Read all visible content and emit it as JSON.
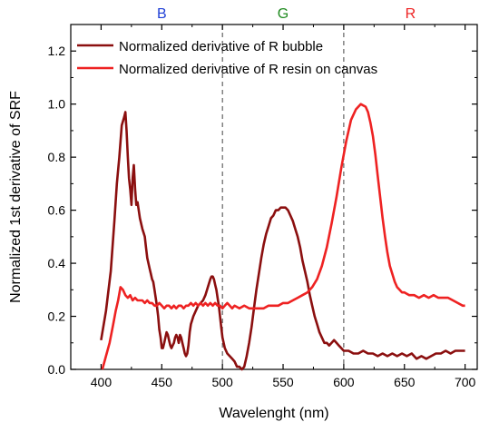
{
  "chart_data": {
    "type": "line",
    "xlabel": "Wavelenght (nm)",
    "ylabel": "Normalized 1st derivative of SRF",
    "xlim": [
      375,
      710
    ],
    "ylim": [
      0,
      1.3
    ],
    "x_ticks": [
      400,
      450,
      500,
      550,
      600,
      650,
      700
    ],
    "y_ticks": [
      0.0,
      0.2,
      0.4,
      0.6,
      0.8,
      1.0,
      1.2
    ],
    "y_tick_labels": [
      "0.0",
      "0.2",
      "0.4",
      "0.6",
      "0.8",
      "1.0",
      "1.2"
    ],
    "grid": false,
    "legend_position": "top-left",
    "band_lines": [
      500,
      600
    ],
    "band_labels": [
      {
        "label": "B",
        "color": "#1f3fd6",
        "x": 450
      },
      {
        "label": "G",
        "color": "#1f8a1f",
        "x": 550
      },
      {
        "label": "R",
        "color": "#ee2222",
        "x": 655
      }
    ],
    "series": [
      {
        "name": "Normalized derivative of R bubble",
        "color": "#8b0f0f",
        "points": [
          [
            400,
            0.11
          ],
          [
            404,
            0.22
          ],
          [
            408,
            0.37
          ],
          [
            411,
            0.56
          ],
          [
            413,
            0.7
          ],
          [
            415,
            0.8
          ],
          [
            417,
            0.92
          ],
          [
            419,
            0.95
          ],
          [
            420,
            0.97
          ],
          [
            421,
            0.9
          ],
          [
            422,
            0.8
          ],
          [
            423,
            0.72
          ],
          [
            424,
            0.68
          ],
          [
            425,
            0.62
          ],
          [
            426,
            0.72
          ],
          [
            427,
            0.77
          ],
          [
            428,
            0.68
          ],
          [
            429,
            0.62
          ],
          [
            430,
            0.63
          ],
          [
            432,
            0.57
          ],
          [
            434,
            0.53
          ],
          [
            436,
            0.5
          ],
          [
            437,
            0.46
          ],
          [
            438,
            0.42
          ],
          [
            440,
            0.38
          ],
          [
            441,
            0.36
          ],
          [
            442,
            0.34
          ],
          [
            443,
            0.33
          ],
          [
            444,
            0.3
          ],
          [
            446,
            0.24
          ],
          [
            447,
            0.2
          ],
          [
            448,
            0.15
          ],
          [
            449,
            0.12
          ],
          [
            450,
            0.08
          ],
          [
            451,
            0.08
          ],
          [
            452,
            0.1
          ],
          [
            453,
            0.12
          ],
          [
            454,
            0.14
          ],
          [
            455,
            0.13
          ],
          [
            456,
            0.11
          ],
          [
            457,
            0.09
          ],
          [
            458,
            0.08
          ],
          [
            459,
            0.09
          ],
          [
            460,
            0.1
          ],
          [
            461,
            0.12
          ],
          [
            462,
            0.13
          ],
          [
            463,
            0.12
          ],
          [
            464,
            0.1
          ],
          [
            465,
            0.13
          ],
          [
            466,
            0.12
          ],
          [
            467,
            0.1
          ],
          [
            468,
            0.08
          ],
          [
            469,
            0.06
          ],
          [
            470,
            0.05
          ],
          [
            471,
            0.06
          ],
          [
            472,
            0.09
          ],
          [
            473,
            0.14
          ],
          [
            474,
            0.17
          ],
          [
            476,
            0.2
          ],
          [
            478,
            0.22
          ],
          [
            480,
            0.24
          ],
          [
            482,
            0.25
          ],
          [
            484,
            0.26
          ],
          [
            486,
            0.28
          ],
          [
            488,
            0.31
          ],
          [
            490,
            0.34
          ],
          [
            491,
            0.35
          ],
          [
            492,
            0.35
          ],
          [
            493,
            0.34
          ],
          [
            494,
            0.32
          ],
          [
            495,
            0.3
          ],
          [
            496,
            0.27
          ],
          [
            497,
            0.24
          ],
          [
            498,
            0.2
          ],
          [
            499,
            0.16
          ],
          [
            500,
            0.12
          ],
          [
            502,
            0.08
          ],
          [
            504,
            0.06
          ],
          [
            506,
            0.05
          ],
          [
            508,
            0.04
          ],
          [
            510,
            0.03
          ],
          [
            512,
            0.01
          ],
          [
            514,
            0.01
          ],
          [
            516,
            0.0
          ],
          [
            518,
            0.01
          ],
          [
            520,
            0.05
          ],
          [
            522,
            0.1
          ],
          [
            524,
            0.16
          ],
          [
            526,
            0.23
          ],
          [
            528,
            0.3
          ],
          [
            530,
            0.36
          ],
          [
            532,
            0.42
          ],
          [
            534,
            0.47
          ],
          [
            536,
            0.51
          ],
          [
            538,
            0.54
          ],
          [
            540,
            0.57
          ],
          [
            542,
            0.58
          ],
          [
            544,
            0.6
          ],
          [
            546,
            0.6
          ],
          [
            548,
            0.61
          ],
          [
            550,
            0.61
          ],
          [
            552,
            0.61
          ],
          [
            554,
            0.6
          ],
          [
            556,
            0.58
          ],
          [
            558,
            0.56
          ],
          [
            560,
            0.53
          ],
          [
            562,
            0.5
          ],
          [
            564,
            0.46
          ],
          [
            566,
            0.41
          ],
          [
            568,
            0.37
          ],
          [
            570,
            0.33
          ],
          [
            572,
            0.28
          ],
          [
            574,
            0.24
          ],
          [
            576,
            0.2
          ],
          [
            578,
            0.17
          ],
          [
            580,
            0.14
          ],
          [
            582,
            0.12
          ],
          [
            584,
            0.1
          ],
          [
            586,
            0.1
          ],
          [
            588,
            0.09
          ],
          [
            590,
            0.1
          ],
          [
            592,
            0.11
          ],
          [
            594,
            0.1
          ],
          [
            596,
            0.09
          ],
          [
            598,
            0.08
          ],
          [
            600,
            0.07
          ],
          [
            604,
            0.07
          ],
          [
            608,
            0.06
          ],
          [
            612,
            0.06
          ],
          [
            616,
            0.07
          ],
          [
            620,
            0.06
          ],
          [
            624,
            0.06
          ],
          [
            628,
            0.05
          ],
          [
            632,
            0.06
          ],
          [
            636,
            0.05
          ],
          [
            640,
            0.06
          ],
          [
            644,
            0.05
          ],
          [
            648,
            0.06
          ],
          [
            652,
            0.05
          ],
          [
            656,
            0.06
          ],
          [
            660,
            0.04
          ],
          [
            664,
            0.05
          ],
          [
            668,
            0.04
          ],
          [
            672,
            0.05
          ],
          [
            676,
            0.06
          ],
          [
            680,
            0.06
          ],
          [
            684,
            0.07
          ],
          [
            688,
            0.06
          ],
          [
            692,
            0.07
          ],
          [
            696,
            0.07
          ],
          [
            700,
            0.07
          ]
        ]
      },
      {
        "name": "Normalized derivative of R resin on canvas",
        "color": "#ee2222",
        "points": [
          [
            401,
            0.0
          ],
          [
            404,
            0.05
          ],
          [
            407,
            0.1
          ],
          [
            410,
            0.17
          ],
          [
            412,
            0.22
          ],
          [
            414,
            0.26
          ],
          [
            416,
            0.31
          ],
          [
            418,
            0.3
          ],
          [
            420,
            0.28
          ],
          [
            422,
            0.27
          ],
          [
            424,
            0.28
          ],
          [
            426,
            0.26
          ],
          [
            428,
            0.27
          ],
          [
            430,
            0.26
          ],
          [
            432,
            0.26
          ],
          [
            434,
            0.26
          ],
          [
            436,
            0.25
          ],
          [
            438,
            0.26
          ],
          [
            440,
            0.25
          ],
          [
            442,
            0.25
          ],
          [
            444,
            0.24
          ],
          [
            446,
            0.24
          ],
          [
            448,
            0.25
          ],
          [
            450,
            0.24
          ],
          [
            452,
            0.23
          ],
          [
            454,
            0.24
          ],
          [
            456,
            0.24
          ],
          [
            458,
            0.23
          ],
          [
            460,
            0.24
          ],
          [
            462,
            0.23
          ],
          [
            464,
            0.24
          ],
          [
            466,
            0.24
          ],
          [
            468,
            0.23
          ],
          [
            470,
            0.24
          ],
          [
            472,
            0.24
          ],
          [
            474,
            0.25
          ],
          [
            476,
            0.24
          ],
          [
            478,
            0.25
          ],
          [
            480,
            0.24
          ],
          [
            482,
            0.25
          ],
          [
            484,
            0.24
          ],
          [
            486,
            0.25
          ],
          [
            488,
            0.24
          ],
          [
            490,
            0.25
          ],
          [
            492,
            0.24
          ],
          [
            494,
            0.25
          ],
          [
            496,
            0.24
          ],
          [
            498,
            0.24
          ],
          [
            500,
            0.23
          ],
          [
            502,
            0.24
          ],
          [
            504,
            0.25
          ],
          [
            506,
            0.24
          ],
          [
            508,
            0.23
          ],
          [
            510,
            0.24
          ],
          [
            514,
            0.23
          ],
          [
            518,
            0.24
          ],
          [
            522,
            0.23
          ],
          [
            526,
            0.23
          ],
          [
            530,
            0.23
          ],
          [
            534,
            0.23
          ],
          [
            538,
            0.24
          ],
          [
            542,
            0.24
          ],
          [
            546,
            0.24
          ],
          [
            550,
            0.25
          ],
          [
            554,
            0.25
          ],
          [
            558,
            0.26
          ],
          [
            562,
            0.27
          ],
          [
            566,
            0.28
          ],
          [
            570,
            0.29
          ],
          [
            574,
            0.31
          ],
          [
            578,
            0.34
          ],
          [
            582,
            0.39
          ],
          [
            586,
            0.46
          ],
          [
            590,
            0.55
          ],
          [
            594,
            0.65
          ],
          [
            598,
            0.76
          ],
          [
            602,
            0.86
          ],
          [
            606,
            0.94
          ],
          [
            610,
            0.98
          ],
          [
            614,
            1.0
          ],
          [
            618,
            0.99
          ],
          [
            620,
            0.97
          ],
          [
            622,
            0.93
          ],
          [
            624,
            0.88
          ],
          [
            626,
            0.81
          ],
          [
            628,
            0.73
          ],
          [
            630,
            0.65
          ],
          [
            632,
            0.57
          ],
          [
            634,
            0.5
          ],
          [
            636,
            0.44
          ],
          [
            638,
            0.39
          ],
          [
            640,
            0.36
          ],
          [
            642,
            0.33
          ],
          [
            644,
            0.31
          ],
          [
            646,
            0.3
          ],
          [
            648,
            0.29
          ],
          [
            650,
            0.29
          ],
          [
            654,
            0.28
          ],
          [
            658,
            0.28
          ],
          [
            662,
            0.27
          ],
          [
            666,
            0.28
          ],
          [
            670,
            0.27
          ],
          [
            674,
            0.28
          ],
          [
            678,
            0.27
          ],
          [
            682,
            0.27
          ],
          [
            686,
            0.27
          ],
          [
            690,
            0.26
          ],
          [
            694,
            0.25
          ],
          [
            698,
            0.24
          ],
          [
            700,
            0.24
          ]
        ]
      }
    ]
  }
}
